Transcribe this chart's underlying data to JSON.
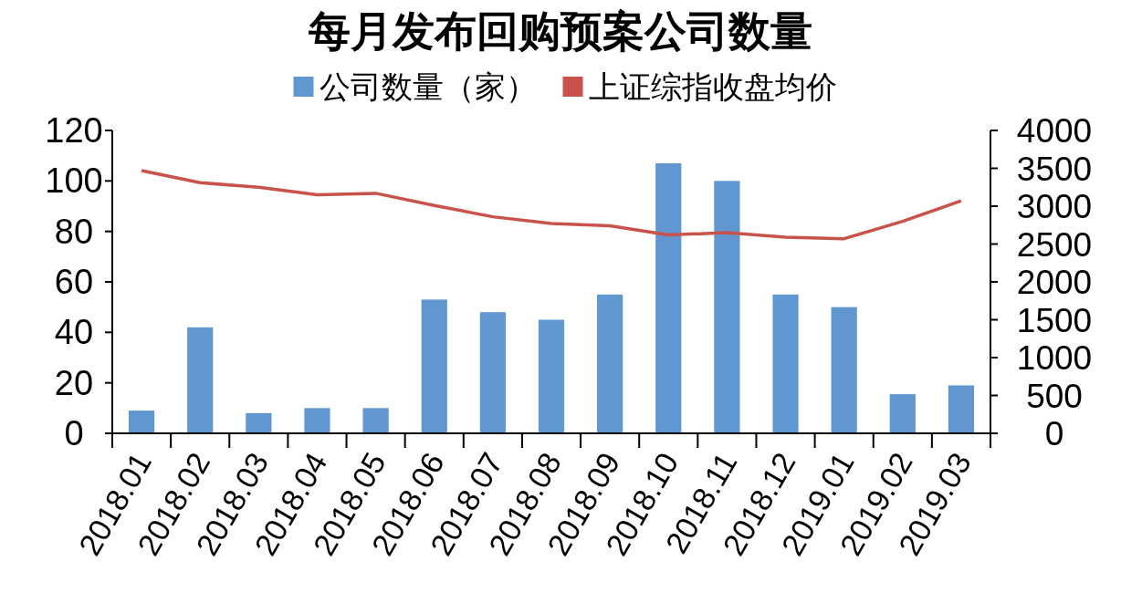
{
  "chart_data": {
    "type": "bar",
    "title": "每月发布回购预案公司数量",
    "categories": [
      "2018.01",
      "2018.02",
      "2018.03",
      "2018.04",
      "2018.05",
      "2018.06",
      "2018.07",
      "2018.08",
      "2018.09",
      "2018.10",
      "2018.11",
      "2018.12",
      "2019.01",
      "2019.02",
      "2019.03"
    ],
    "series": [
      {
        "name": "公司数量（家）",
        "color": "#6097d0",
        "values": [
          9,
          42,
          8,
          10,
          10,
          53,
          48,
          45,
          55,
          107,
          100,
          55,
          50,
          15.5,
          19
        ]
      },
      {
        "name": "上证综指收盘均价",
        "type": "line",
        "axis": "y2",
        "color": "#c9524a",
        "values": [
          3470,
          3310,
          3250,
          3150,
          3170,
          3010,
          2860,
          2770,
          2740,
          2620,
          2650,
          2590,
          2570,
          2800,
          3070
        ]
      }
    ],
    "ylim": [
      0,
      120
    ],
    "yticks": [
      0,
      20,
      40,
      60,
      80,
      100,
      120
    ],
    "y2lim": [
      0,
      4000
    ],
    "y2ticks": [
      0,
      500,
      1000,
      1500,
      2000,
      2500,
      3000,
      3500,
      4000
    ],
    "legend": "top",
    "grid": false
  }
}
